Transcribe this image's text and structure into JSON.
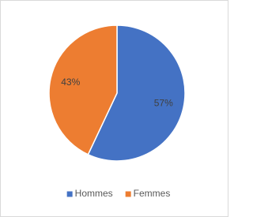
{
  "chart_data": {
    "type": "pie",
    "categories": [
      "Hommes",
      "Femmes"
    ],
    "values": [
      57,
      43
    ],
    "value_labels": [
      "57%",
      "43%"
    ],
    "colors": [
      "#4472c4",
      "#ed7d31"
    ],
    "legend": "bottom"
  }
}
